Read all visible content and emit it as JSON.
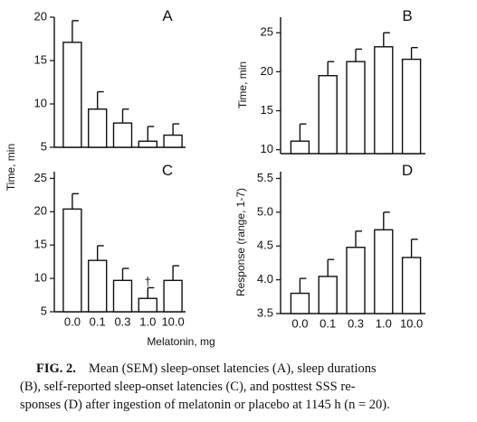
{
  "chart_data": [
    {
      "type": "bar",
      "title": "A",
      "ylabel": "Time, min",
      "categories": [
        null,
        null,
        null,
        null,
        null
      ],
      "values": [
        17.1,
        9.4,
        7.8,
        5.7,
        6.4
      ],
      "errors": [
        2.5,
        2.0,
        1.6,
        1.7,
        1.3
      ],
      "ylim": [
        5,
        20
      ],
      "yticks": [
        5,
        10,
        15,
        20
      ]
    },
    {
      "type": "bar",
      "title": "B",
      "ylabel": "Time, min",
      "categories": [
        null,
        null,
        null,
        null,
        null
      ],
      "values": [
        11.1,
        19.5,
        21.3,
        23.2,
        21.6
      ],
      "errors": [
        2.2,
        1.8,
        1.6,
        1.8,
        1.5
      ],
      "ylim": [
        9.5,
        27
      ],
      "yticks": [
        10,
        15,
        20,
        25
      ]
    },
    {
      "type": "bar",
      "title": "C",
      "annotation": "†",
      "categories": [
        "0.0",
        "0.1",
        "0.3",
        "1.0",
        "10.0"
      ],
      "values": [
        20.4,
        12.7,
        9.7,
        7.0,
        9.7
      ],
      "errors": [
        2.3,
        2.2,
        1.8,
        1.6,
        2.2
      ],
      "ylim": [
        5,
        26
      ],
      "yticks": [
        5,
        10,
        15,
        20,
        25
      ]
    },
    {
      "type": "bar",
      "title": "D",
      "ylabel": "Response (range, 1-7)",
      "categories": [
        "0.0",
        "0.1",
        "0.3",
        "1.0",
        "10.0"
      ],
      "values": [
        3.8,
        4.05,
        4.48,
        4.74,
        4.33
      ],
      "errors": [
        0.22,
        0.25,
        0.24,
        0.26,
        0.27
      ],
      "ylim": [
        3.5,
        5.6
      ],
      "yticks": [
        {
          "value": 3.5,
          "label": "3.5"
        },
        {
          "value": 4,
          "label": "4.0"
        },
        {
          "value": 4.5,
          "label": "4.5"
        },
        {
          "value": 5,
          "label": "5.0"
        },
        {
          "value": 5.5,
          "label": "5.5"
        }
      ]
    }
  ],
  "xlabel": "Melatonin, mg",
  "caption": {
    "label": "FIG. 2.",
    "lines": [
      "Mean (SEM) sleep-onset latencies (A), sleep durations",
      "(B), self-reported sleep-onset latencies (C), and posttest SSS re-",
      "sponses (D) after ingestion of melatonin or placebo at 1145 h (n = 20)."
    ]
  }
}
